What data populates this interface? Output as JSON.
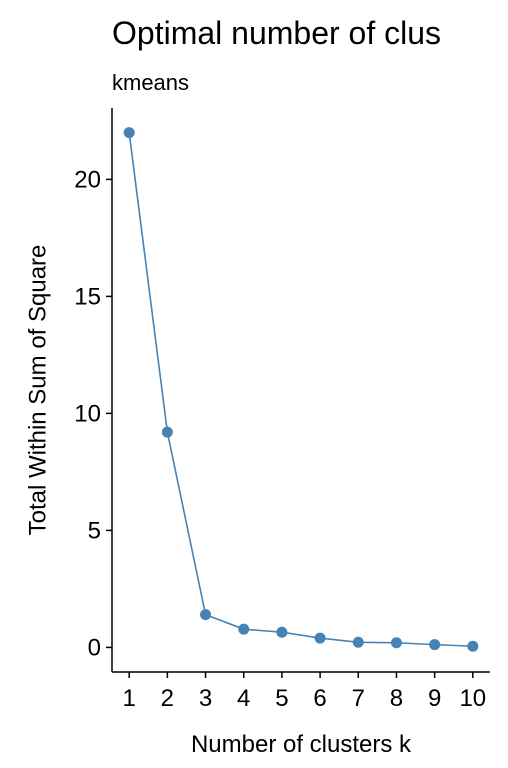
{
  "chart_data": {
    "type": "line",
    "title": "Optimal number of clus",
    "subtitle": "kmeans",
    "xlabel": "Number of clusters k",
    "ylabel": "Total Within Sum of Square",
    "x": [
      1,
      2,
      3,
      4,
      5,
      6,
      7,
      8,
      9,
      10
    ],
    "series": [
      {
        "values": [
          22.0,
          9.2,
          1.4,
          0.78,
          0.65,
          0.4,
          0.22,
          0.2,
          0.12,
          0.05
        ]
      }
    ],
    "x_ticks": [
      "1",
      "2",
      "3",
      "4",
      "5",
      "6",
      "7",
      "8",
      "9",
      "10"
    ],
    "y_ticks": [
      "0",
      "5",
      "10",
      "15",
      "20"
    ],
    "y_tick_values": [
      0,
      5,
      10,
      15,
      20
    ],
    "xlim": [
      0.55,
      10.45
    ],
    "ylim": [
      -1.05,
      23.05
    ],
    "grid": false,
    "legend": "none",
    "line_color": "#4682B4",
    "point_color": "#4682B4"
  }
}
